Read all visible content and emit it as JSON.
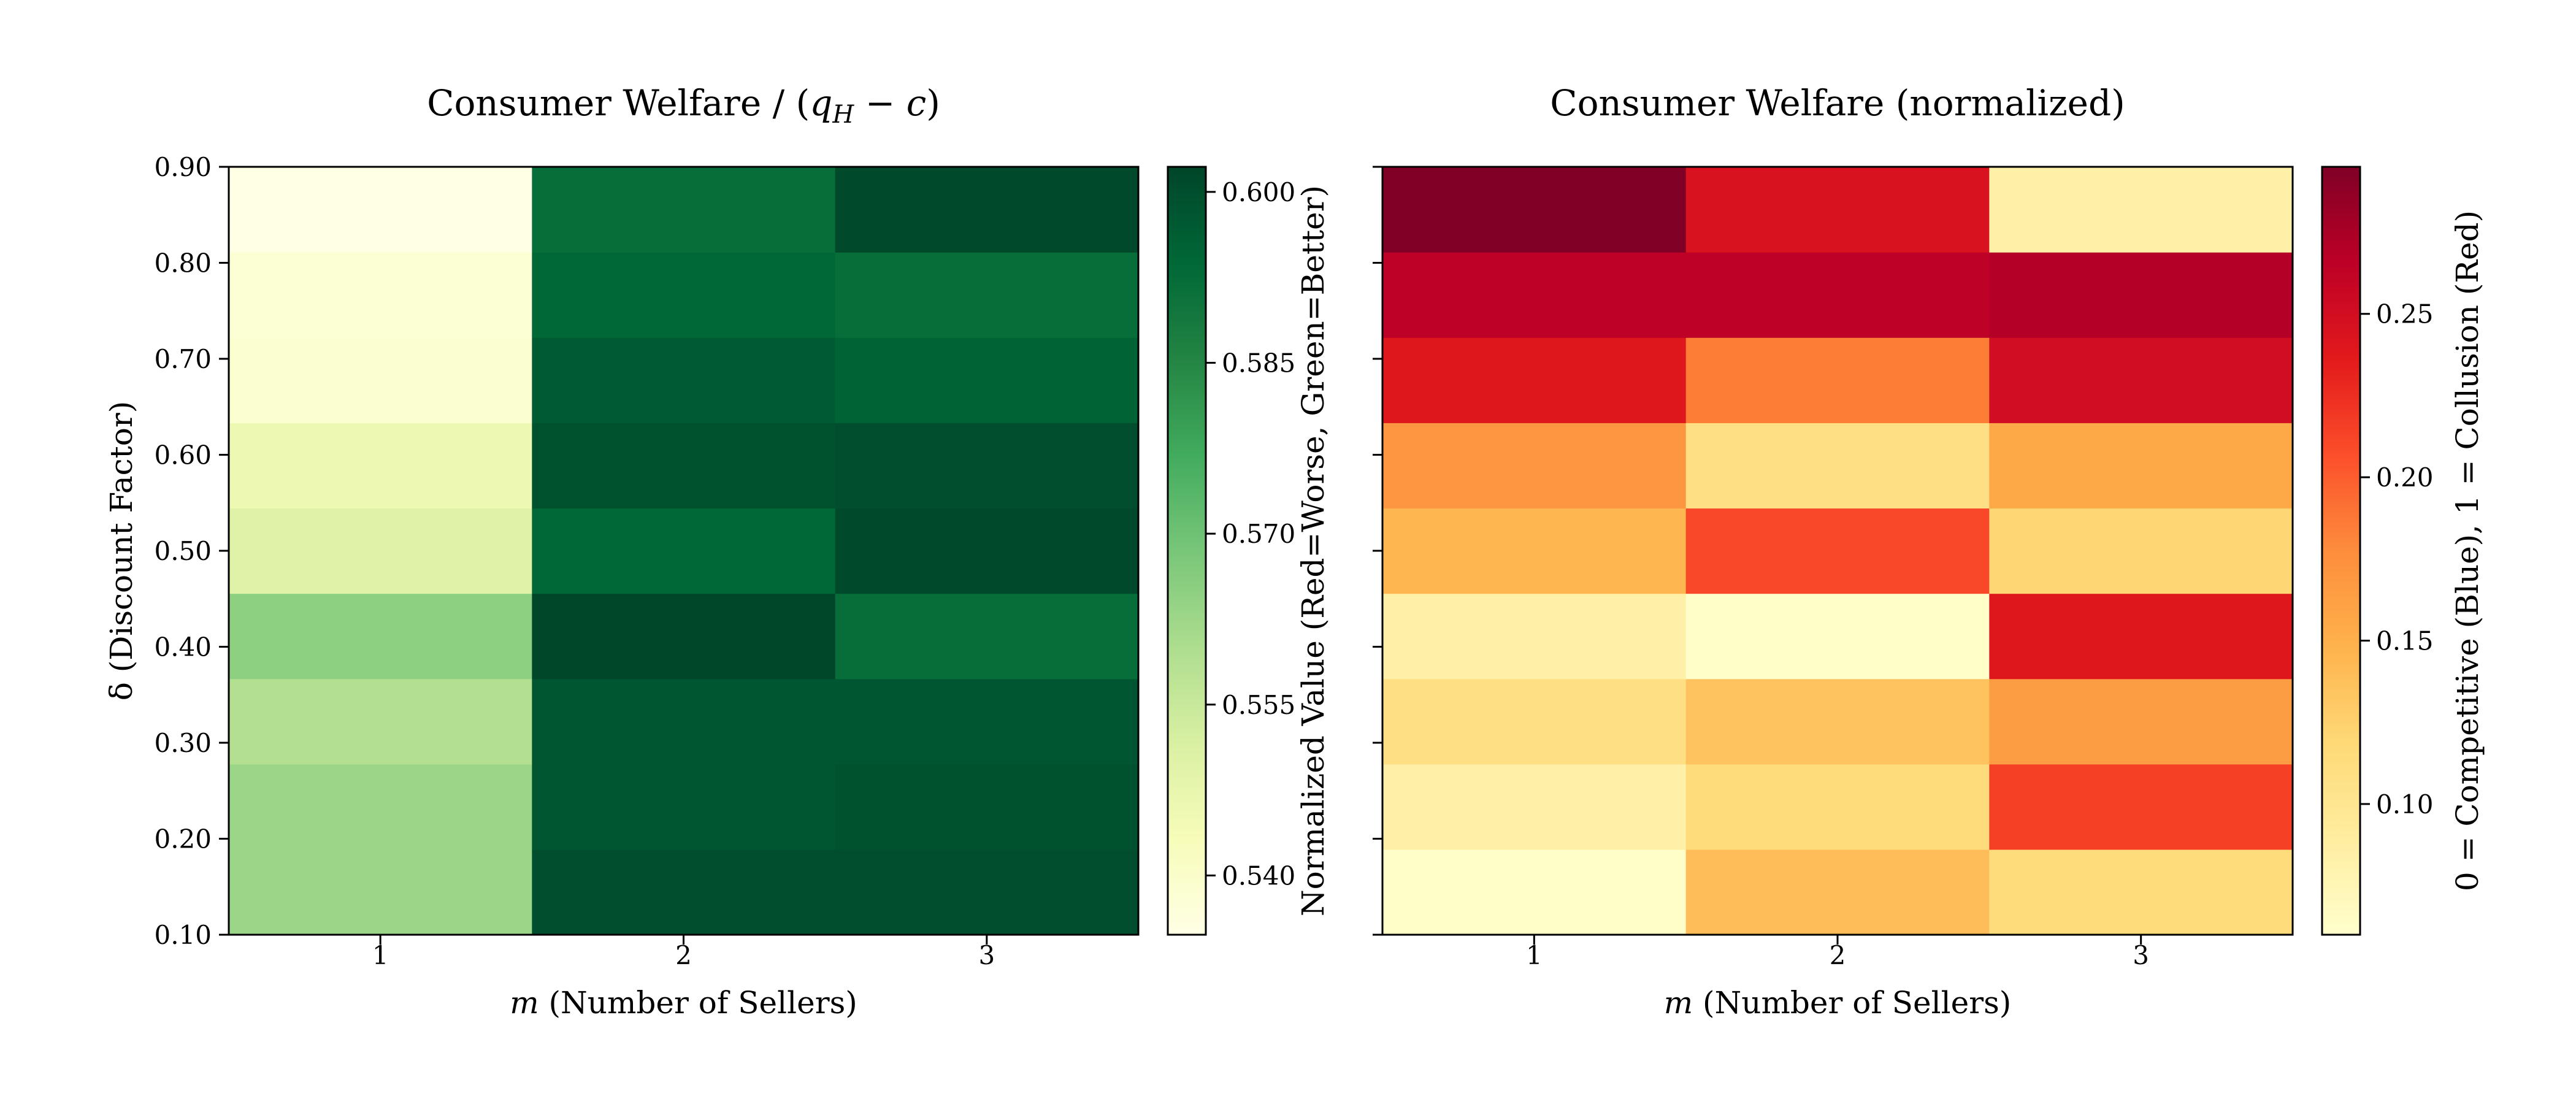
{
  "chart_data": [
    {
      "type": "heatmap",
      "title": "Consumer Welfare / (q_H − c)",
      "xlabel": "m (Number of Sellers)",
      "ylabel": "δ (Discount Factor)",
      "colorbar_label": "Normalized Value (Red=Worse, Green=Better)",
      "colormap": "YlGn",
      "x": [
        "1",
        "2",
        "3"
      ],
      "y": [
        "0.10",
        "0.20",
        "0.30",
        "0.40",
        "0.50",
        "0.60",
        "0.70",
        "0.80",
        "0.90"
      ],
      "values": [
        [
          0.563,
          0.6,
          0.6
        ],
        [
          0.563,
          0.598,
          0.599
        ],
        [
          0.559,
          0.598,
          0.598
        ],
        [
          0.565,
          0.602,
          0.592
        ],
        [
          0.55,
          0.594,
          0.601
        ],
        [
          0.546,
          0.599,
          0.6
        ],
        [
          0.539,
          0.597,
          0.595
        ],
        [
          0.538,
          0.594,
          0.592
        ],
        [
          0.535,
          0.592,
          0.601
        ]
      ],
      "vmin": 0.5348,
      "vmax": 0.6022,
      "colorbar_ticks": [
        "0.540",
        "0.555",
        "0.570",
        "0.585",
        "0.600"
      ]
    },
    {
      "type": "heatmap",
      "title": "Consumer Welfare (normalized)",
      "xlabel": "m (Number of Sellers)",
      "ylabel": "",
      "colorbar_label": "0 = Competitive (Blue), 1 = Collusion (Red)",
      "colormap": "YlOrRd",
      "x": [
        "1",
        "2",
        "3"
      ],
      "y": [
        "0.10",
        "0.20",
        "0.30",
        "0.40",
        "0.50",
        "0.60",
        "0.70",
        "0.80",
        "0.90"
      ],
      "values": [
        [
          0.062,
          0.14,
          0.115
        ],
        [
          0.085,
          0.115,
          0.215
        ],
        [
          0.11,
          0.135,
          0.165
        ],
        [
          0.085,
          0.062,
          0.24
        ],
        [
          0.145,
          0.21,
          0.12
        ],
        [
          0.17,
          0.11,
          0.155
        ],
        [
          0.24,
          0.185,
          0.25
        ],
        [
          0.265,
          0.265,
          0.27
        ],
        [
          0.295,
          0.245,
          0.085
        ]
      ],
      "vmin": 0.06,
      "vmax": 0.295,
      "colorbar_ticks": [
        "0.10",
        "0.15",
        "0.20",
        "0.25"
      ]
    }
  ]
}
